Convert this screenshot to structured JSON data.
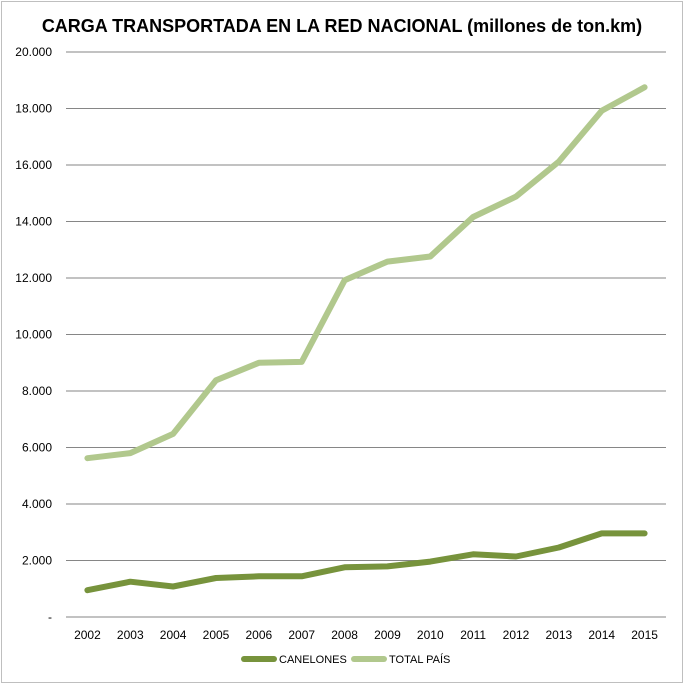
{
  "chart_data": {
    "type": "line",
    "title": "CARGA TRANSPORTADA EN LA RED NACIONAL (millones de ton.km)",
    "xlabel": "",
    "ylabel": "",
    "x": [
      "2002",
      "2003",
      "2004",
      "2005",
      "2006",
      "2007",
      "2008",
      "2009",
      "2010",
      "2011",
      "2012",
      "2013",
      "2014",
      "2015"
    ],
    "ylim": [
      0,
      20000
    ],
    "yticks": [
      0,
      2000,
      4000,
      6000,
      8000,
      10000,
      12000,
      14000,
      16000,
      18000,
      20000
    ],
    "ytick_labels": [
      "-",
      "2.000",
      "4.000",
      "6.000",
      "8.000",
      "10.000",
      "12.000",
      "14.000",
      "16.000",
      "18.000",
      "20.000"
    ],
    "grid": true,
    "legend_position": "bottom",
    "series": [
      {
        "name": "CANELONES",
        "color": "#77933c",
        "values": [
          950,
          1250,
          1080,
          1380,
          1440,
          1440,
          1760,
          1790,
          1960,
          2220,
          2140,
          2460,
          2960,
          2960
        ]
      },
      {
        "name": "TOTAL PAÍS",
        "color": "#b1c88d",
        "values": [
          5620,
          5800,
          6480,
          8380,
          9000,
          9030,
          11920,
          12580,
          12760,
          14160,
          14880,
          16120,
          17920,
          18750
        ]
      }
    ]
  }
}
